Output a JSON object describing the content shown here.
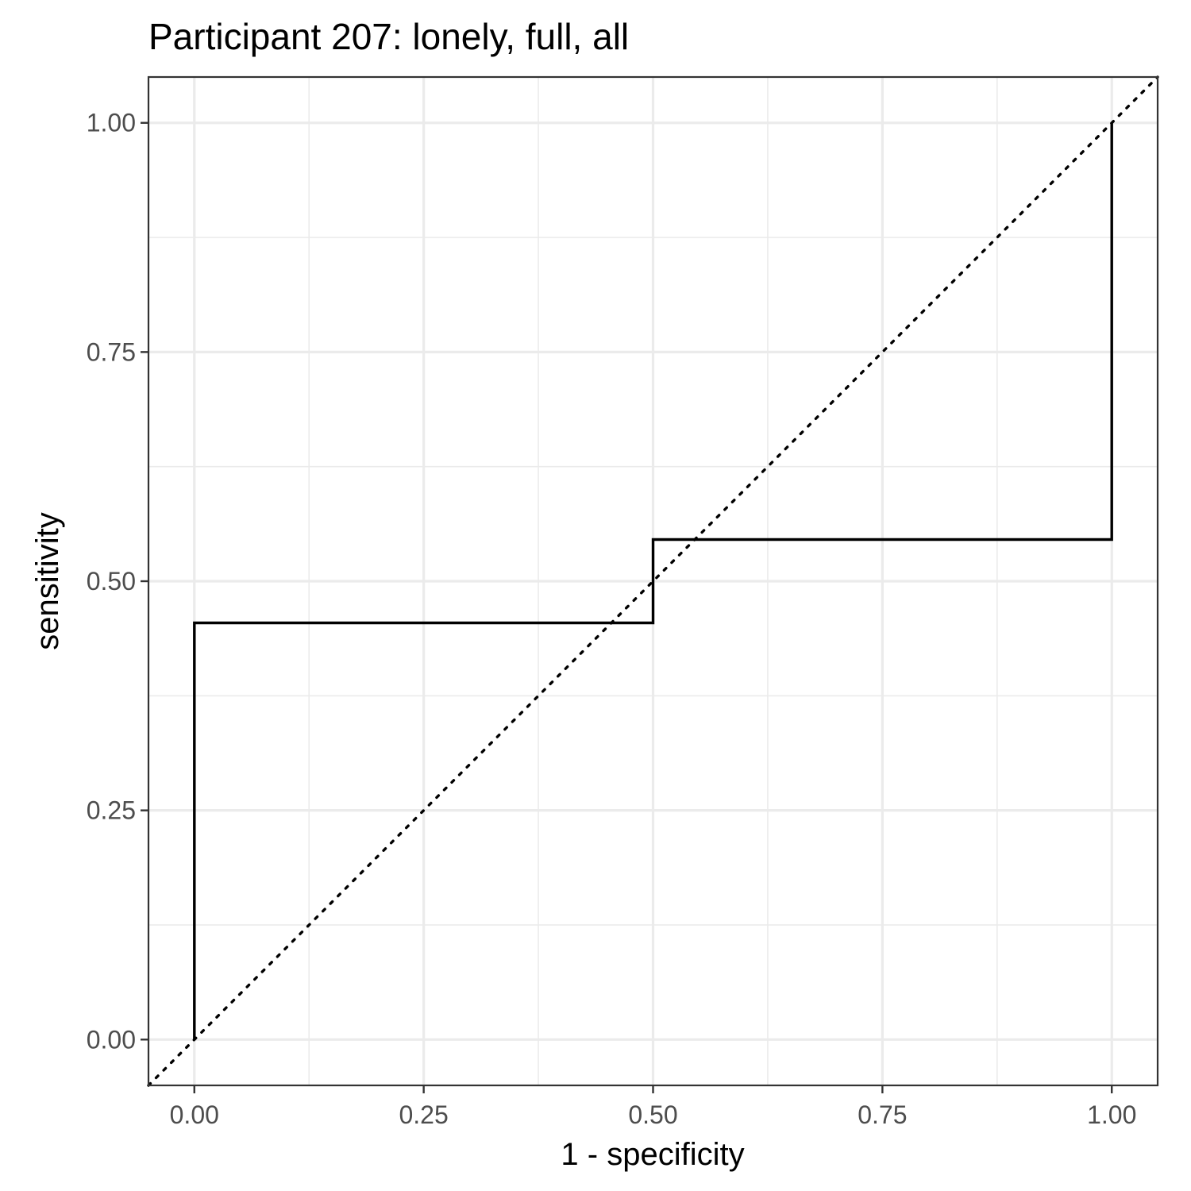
{
  "chart_data": {
    "type": "line",
    "title": "Participant 207: lonely, full, all",
    "xlabel": "1 - specificity",
    "ylabel": "sensitivity",
    "xlim": [
      -0.05,
      1.05
    ],
    "ylim": [
      -0.05,
      1.05
    ],
    "x_ticks": [
      0,
      0.25,
      0.5,
      0.75,
      1
    ],
    "x_tick_labels": [
      "0.00",
      "0.25",
      "0.50",
      "0.75",
      "1.00"
    ],
    "y_ticks": [
      0,
      0.25,
      0.5,
      0.75,
      1
    ],
    "y_tick_labels": [
      "0.00",
      "0.25",
      "0.50",
      "0.75",
      "1.00"
    ],
    "grid": true,
    "series": [
      {
        "style": "solid",
        "color": "#000000",
        "x": [
          0,
          0,
          0.5,
          0.5,
          1,
          1
        ],
        "y": [
          0,
          0.4545,
          0.4545,
          0.5455,
          0.5455,
          1
        ]
      },
      {
        "style": "dotted",
        "color": "#000000",
        "x": [
          -0.05,
          1.05
        ],
        "y": [
          -0.05,
          1.05
        ]
      }
    ]
  }
}
